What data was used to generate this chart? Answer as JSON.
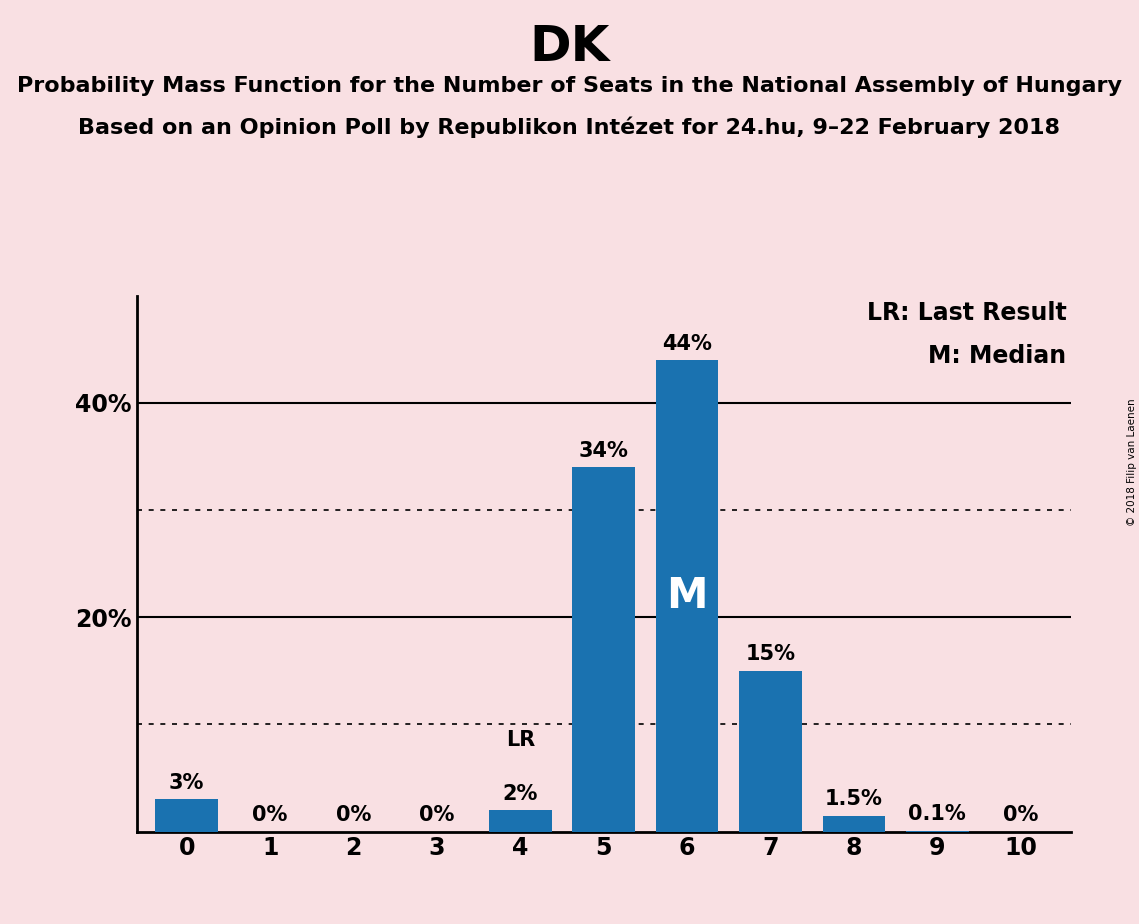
{
  "title": "DK",
  "subtitle1": "Probability Mass Function for the Number of Seats in the National Assembly of Hungary",
  "subtitle2": "Based on an Opinion Poll by Republikon Intézet for 24.hu, 9–22 February 2018",
  "copyright": "© 2018 Filip van Laenen",
  "categories": [
    0,
    1,
    2,
    3,
    4,
    5,
    6,
    7,
    8,
    9,
    10
  ],
  "values": [
    3.0,
    0.0,
    0.0,
    0.0,
    2.0,
    34.0,
    44.0,
    15.0,
    1.5,
    0.1,
    0.0
  ],
  "labels": [
    "3%",
    "0%",
    "0%",
    "0%",
    "2%",
    "34%",
    "44%",
    "15%",
    "1.5%",
    "0.1%",
    "0%"
  ],
  "bar_color": "#1a72b0",
  "background_color": "#f9e0e3",
  "ylim": [
    0,
    50
  ],
  "yticks": [
    20.0,
    40.0
  ],
  "ytick_labels": [
    "20%",
    "40%"
  ],
  "solid_gridlines": [
    20.0,
    40.0
  ],
  "dotted_gridlines": [
    10.0,
    30.0
  ],
  "lr_bar": 4,
  "median_bar": 6,
  "legend_lr": "LR: Last Result",
  "legend_m": "M: Median",
  "title_fontsize": 36,
  "subtitle_fontsize": 16,
  "label_fontsize": 15,
  "tick_fontsize": 17,
  "legend_fontsize": 17,
  "median_label_color": "#ffffff",
  "bar_width": 0.75
}
